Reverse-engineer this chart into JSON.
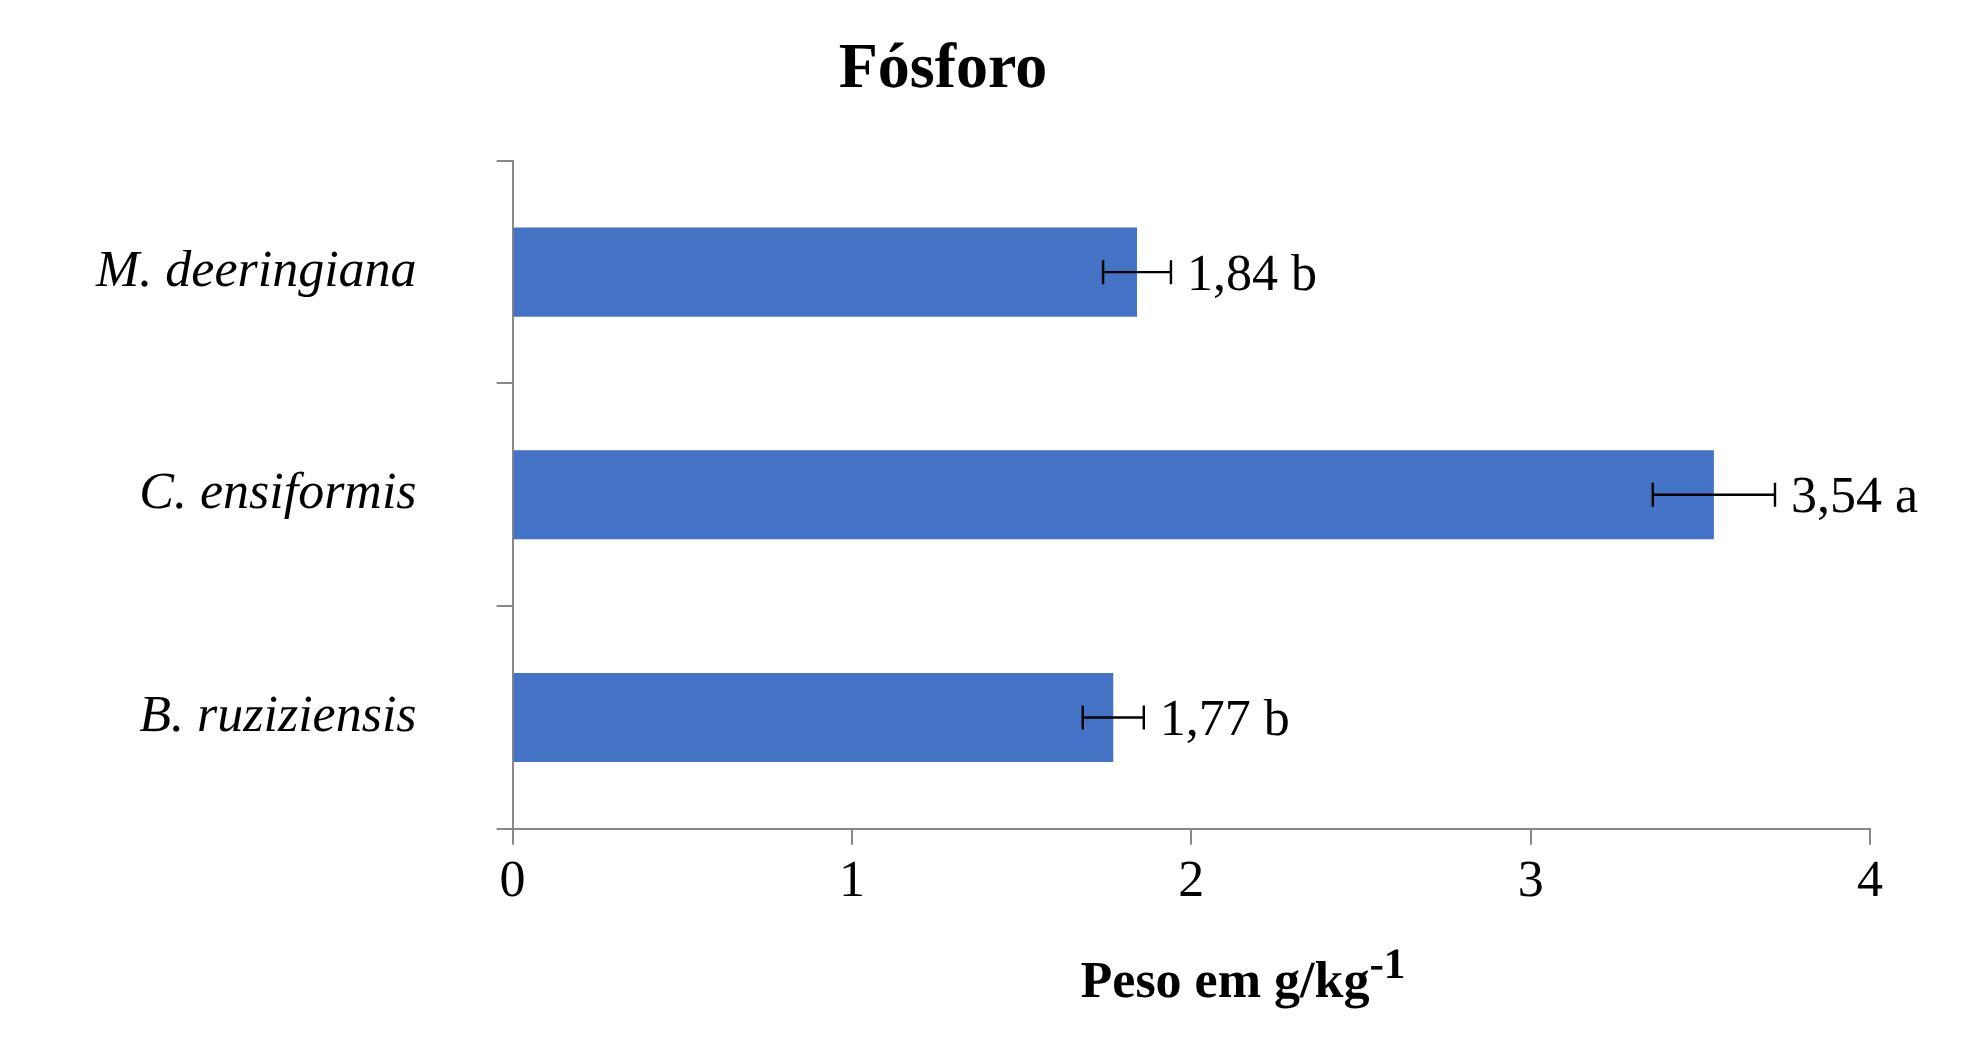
{
  "chart_data": {
    "type": "bar",
    "orientation": "horizontal",
    "title": "Fósforo",
    "xlabel": "Peso em g/kg$^{-1}$",
    "categories": [
      "M. deeringiana",
      "C. ensiformis",
      "B. ruziziensis"
    ],
    "values": [
      1.84,
      3.54,
      1.77
    ],
    "errors": [
      0.1,
      0.18,
      0.09
    ],
    "value_labels": [
      "1,84 b",
      "3,54 a",
      "1,77 b"
    ],
    "color": "#4472c4",
    "xlim": [
      0,
      4
    ],
    "xticks": [
      0,
      1,
      2,
      3,
      4
    ],
    "grid": false,
    "legend": false
  }
}
